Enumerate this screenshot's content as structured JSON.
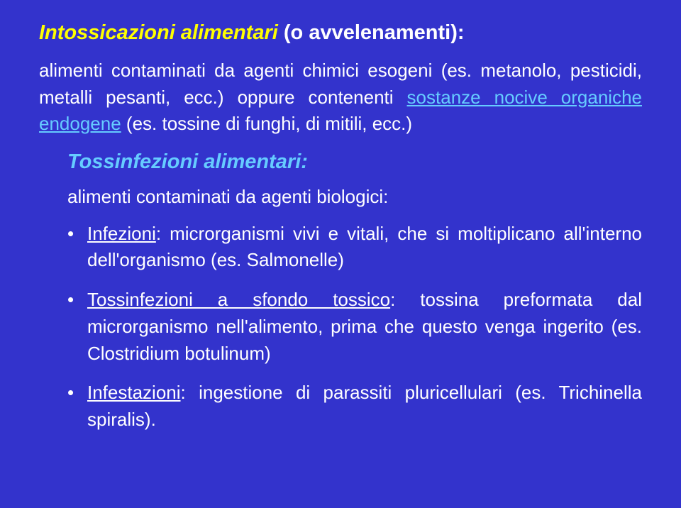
{
  "colors": {
    "background": "#3333cc",
    "text": "#ffffff",
    "highlight": "#ffff00",
    "accent": "#66ccff"
  },
  "title": {
    "highlight": "Intossicazioni alimentari",
    "rest": " (o avvelenamenti):"
  },
  "para1": {
    "lead": "alimenti contaminati da agenti chimici esogeni (es. metanolo, pesticidi, metalli pesanti, ecc.) oppure contenenti ",
    "blue": "sostanze nocive organiche endogene",
    "tail": " (es. tossine di funghi, di mitili, ecc.)"
  },
  "subtitle": "Tossinfezioni alimentari:",
  "para2": "alimenti contaminati da agenti biologici:",
  "bullets": [
    {
      "u": "Infezioni",
      "rest": ": microrganismi vivi e vitali, che si moltiplicano all'interno dell'organismo (es. Salmonelle)"
    },
    {
      "u": "Tossinfezioni a sfondo tossico",
      "rest": ": tossina preformata dal microrganismo nell'alimento, prima che questo venga ingerito (es. Clostridium botulinum)"
    },
    {
      "u": "Infestazioni",
      "rest": ": ingestione di parassiti pluricellulari (es. Trichinella spiralis)."
    }
  ]
}
